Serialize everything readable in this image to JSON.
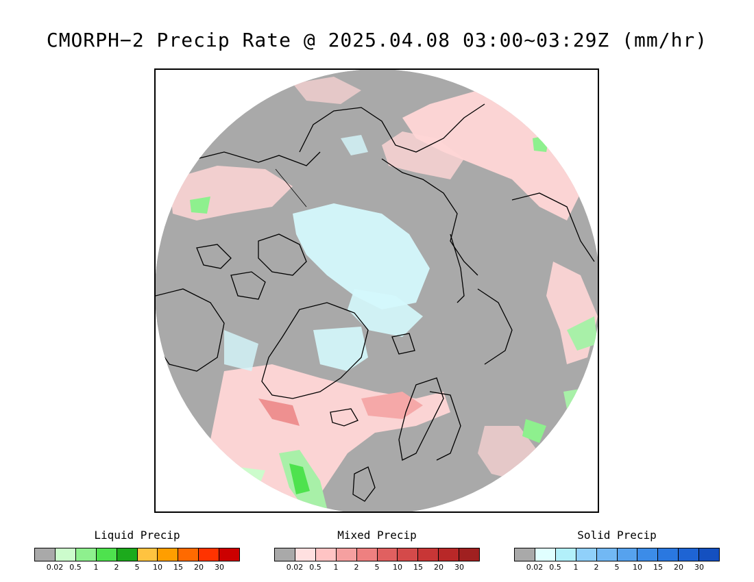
{
  "title": "CMORPH−2 Precip Rate @ 2025.04.08 03:00~03:29Z (mm/hr)",
  "map": {
    "projection": "north-polar-stereographic",
    "background_color": "#a9a9a9",
    "coastline_color": "#000000"
  },
  "legends": [
    {
      "id": "liquid",
      "title": "Liquid Precip",
      "colors": [
        "#a9a9a9",
        "#ccfccc",
        "#8ef08e",
        "#4ee24e",
        "#1caa1c",
        "#ffc340",
        "#ff9e00",
        "#ff6a00",
        "#ff3300",
        "#cc0000"
      ],
      "ticks": [
        "0.02",
        "0.5",
        "1",
        "2",
        "5",
        "10",
        "15",
        "20",
        "30"
      ]
    },
    {
      "id": "mixed",
      "title": "Mixed Precip",
      "colors": [
        "#a9a9a9",
        "#ffe0e0",
        "#ffc4c4",
        "#f5a0a0",
        "#ee8080",
        "#e06060",
        "#d44a4a",
        "#c83636",
        "#b82828",
        "#a02020"
      ],
      "ticks": [
        "0.02",
        "0.5",
        "1",
        "2",
        "5",
        "10",
        "15",
        "20",
        "30"
      ]
    },
    {
      "id": "solid",
      "title": "Solid Precip",
      "colors": [
        "#a9a9a9",
        "#e0ffff",
        "#b2f0fa",
        "#90d0fa",
        "#72b8f4",
        "#56a2ee",
        "#3c8ce8",
        "#2a78e0",
        "#1e64d4",
        "#1450c0"
      ],
      "ticks": [
        "0.02",
        "0.5",
        "1",
        "2",
        "5",
        "10",
        "15",
        "20",
        "30"
      ]
    }
  ]
}
